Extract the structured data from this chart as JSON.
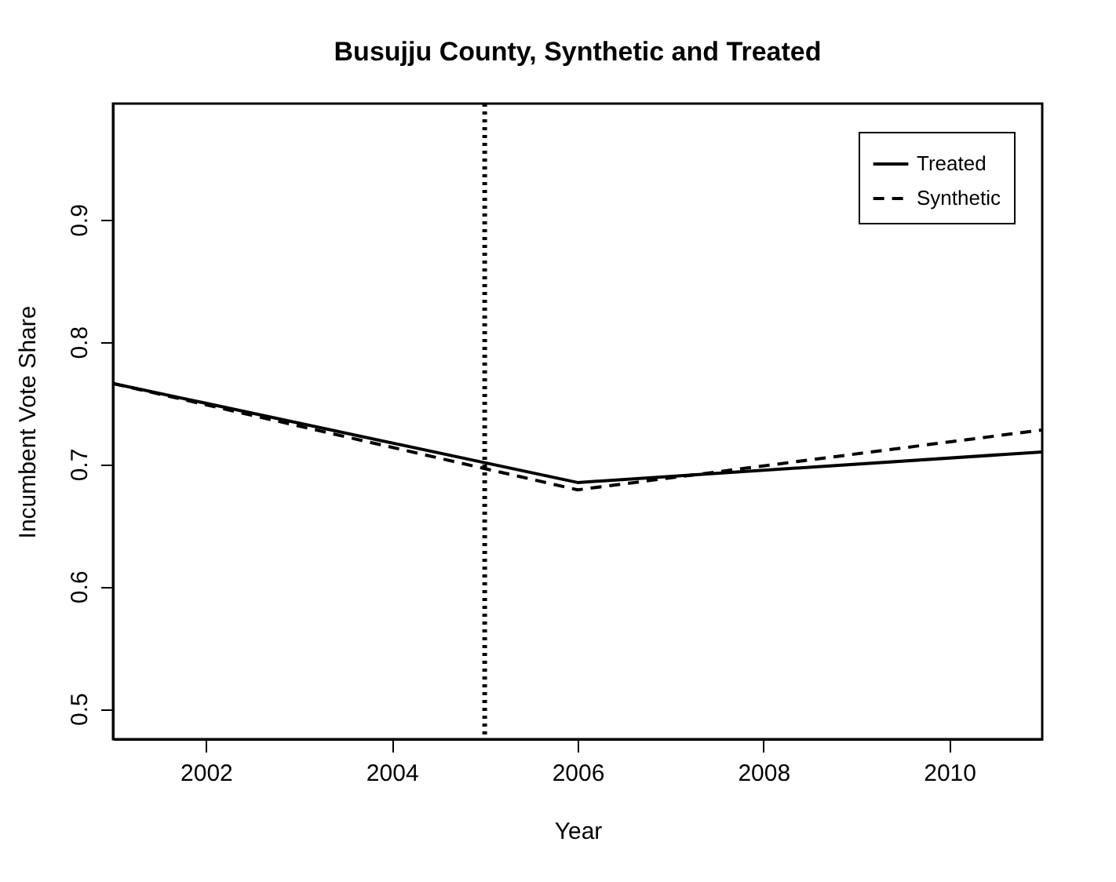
{
  "chart_data": {
    "type": "line",
    "title": "Busujju County, Synthetic and Treated",
    "xlabel": "Year",
    "ylabel": "Incumbent Vote Share",
    "x": [
      2001,
      2006,
      2011
    ],
    "series": [
      {
        "name": "Treated",
        "color": "#000000",
        "line_style": "solid",
        "values": [
          0.766,
          0.685,
          0.71
        ]
      },
      {
        "name": "Synthetic",
        "color": "#000000",
        "line_style": "dashed",
        "values": [
          0.766,
          0.679,
          0.728
        ]
      }
    ],
    "xlim": [
      2001,
      2011
    ],
    "xticks": [
      2002,
      2004,
      2006,
      2008,
      2010
    ],
    "ylim": [
      0.475,
      0.995
    ],
    "yticks": [
      0.5,
      0.6,
      0.7,
      0.8,
      0.9
    ],
    "ref_lines": [
      {
        "axis": "x",
        "value": 2005,
        "line_style": "dotted",
        "color": "#000000"
      }
    ],
    "legend": "top right",
    "grid": false
  }
}
